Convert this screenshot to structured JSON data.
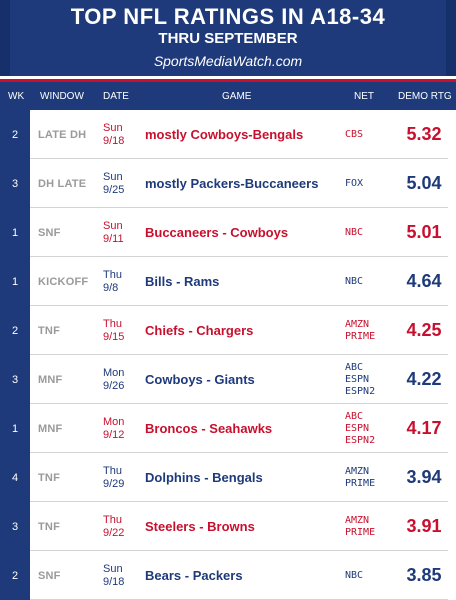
{
  "header": {
    "title": "TOP NFL RATINGS IN A18-34",
    "subtitle": "THRU SEPTEMBER",
    "site": "SportsMediaWatch.com"
  },
  "columns": {
    "wk": "WK",
    "window": "WINDOW",
    "date": "DATE",
    "game": "GAME",
    "net": "NET",
    "rtg": "DEMO RTG"
  },
  "colors": {
    "navy": "#1e3a7a",
    "red": "#c8102e",
    "gray": "#9a9a9a"
  },
  "rows": [
    {
      "wk": "2",
      "window": "LATE DH",
      "date1": "Sun",
      "date2": "9/18",
      "game": "mostly Cowboys-Bengals",
      "net1": "CBS",
      "net2": "",
      "net3": "",
      "rtg": "5.32",
      "accent": "red"
    },
    {
      "wk": "3",
      "window": "DH LATE",
      "date1": "Sun",
      "date2": "9/25",
      "game": "mostly Packers-Buccaneers",
      "net1": "FOX",
      "net2": "",
      "net3": "",
      "rtg": "5.04",
      "accent": "blue"
    },
    {
      "wk": "1",
      "window": "SNF",
      "date1": "Sun",
      "date2": "9/11",
      "game": "Buccaneers - Cowboys",
      "net1": "NBC",
      "net2": "",
      "net3": "",
      "rtg": "5.01",
      "accent": "red"
    },
    {
      "wk": "1",
      "window": "KICKOFF",
      "date1": "Thu",
      "date2": "9/8",
      "game": "Bills - Rams",
      "net1": "NBC",
      "net2": "",
      "net3": "",
      "rtg": "4.64",
      "accent": "blue"
    },
    {
      "wk": "2",
      "window": "TNF",
      "date1": "Thu",
      "date2": "9/15",
      "game": "Chiefs - Chargers",
      "net1": "AMZN",
      "net2": "PRIME",
      "net3": "",
      "rtg": "4.25",
      "accent": "red"
    },
    {
      "wk": "3",
      "window": "MNF",
      "date1": "Mon",
      "date2": "9/26",
      "game": "Cowboys - Giants",
      "net1": "ABC",
      "net2": "ESPN",
      "net3": "ESPN2",
      "rtg": "4.22",
      "accent": "blue"
    },
    {
      "wk": "1",
      "window": "MNF",
      "date1": "Mon",
      "date2": "9/12",
      "game": "Broncos - Seahawks",
      "net1": "ABC",
      "net2": "ESPN",
      "net3": "ESPN2",
      "rtg": "4.17",
      "accent": "red"
    },
    {
      "wk": "4",
      "window": "TNF",
      "date1": "Thu",
      "date2": "9/29",
      "game": "Dolphins - Bengals",
      "net1": "AMZN",
      "net2": "PRIME",
      "net3": "",
      "rtg": "3.94",
      "accent": "blue"
    },
    {
      "wk": "3",
      "window": "TNF",
      "date1": "Thu",
      "date2": "9/22",
      "game": "Steelers - Browns",
      "net1": "AMZN",
      "net2": "PRIME",
      "net3": "",
      "rtg": "3.91",
      "accent": "red"
    },
    {
      "wk": "2",
      "window": "SNF",
      "date1": "Sun",
      "date2": "9/18",
      "game": "Bears - Packers",
      "net1": "NBC",
      "net2": "",
      "net3": "",
      "rtg": "3.85",
      "accent": "blue"
    }
  ]
}
